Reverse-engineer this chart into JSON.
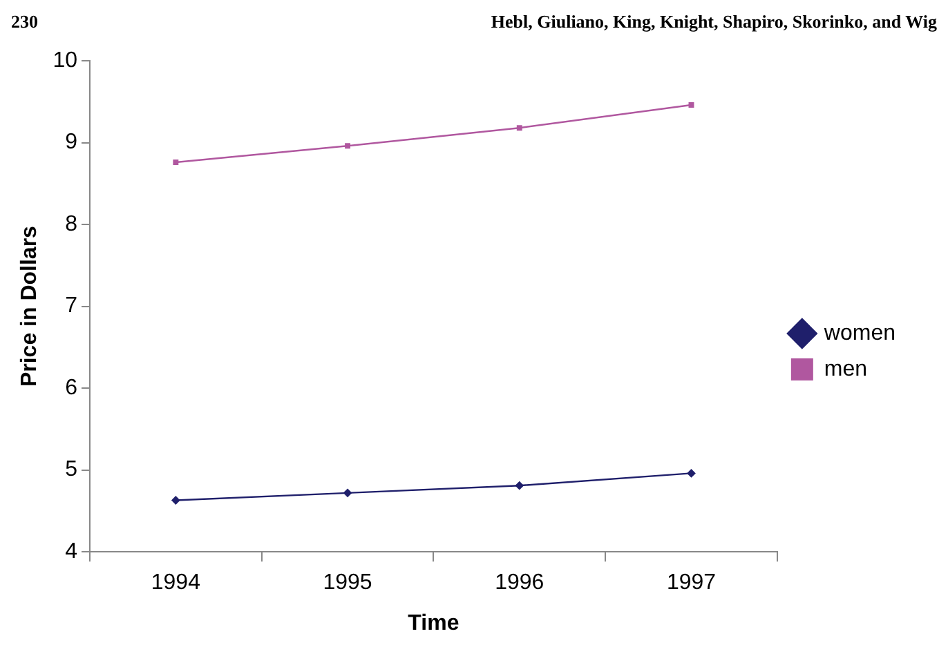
{
  "chart_data": {
    "type": "line",
    "xlabel": "Time",
    "ylabel": "Price in Dollars",
    "annotations": [
      "230",
      "Hebl, Giuliano, King, Knight, Shapiro, Skorinko, and Wig"
    ],
    "categories": [
      "1994",
      "1995",
      "1996",
      "1997"
    ],
    "series": [
      {
        "name": "women",
        "color": "#1f1f6b",
        "marker": "diamond",
        "values": [
          4.63,
          4.72,
          4.81,
          4.96
        ]
      },
      {
        "name": "men",
        "color": "#b0579f",
        "marker": "square",
        "values": [
          8.76,
          8.96,
          9.18,
          9.46
        ]
      }
    ],
    "ylim": [
      4,
      10
    ],
    "yticks": [
      4,
      5,
      6,
      7,
      8,
      9,
      10
    ],
    "grid": false,
    "legend": "right"
  }
}
